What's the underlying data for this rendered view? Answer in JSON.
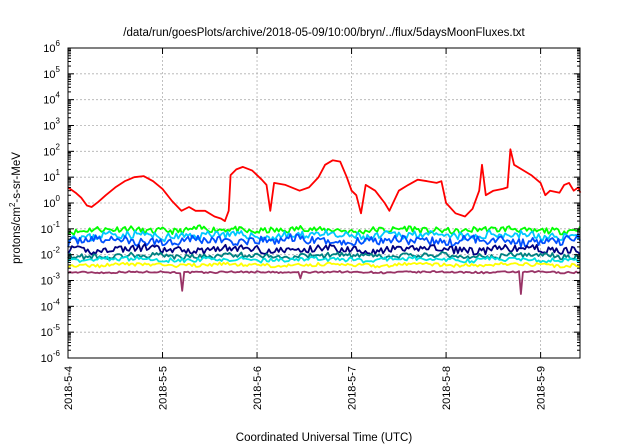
{
  "chart_data": {
    "type": "line",
    "title": "/data/run/goesPlots/archive/2018-05-09/10:00/bryn/../flux/5daysMoonFluxes.txt",
    "xlabel": "Coordinated Universal Time (UTC)",
    "ylabel": "protons/cm²-s-sr-MeV",
    "ylabel_parts": {
      "pre": "protons/cm",
      "sup": "2",
      "post": "-s-sr-MeV"
    },
    "yscale": "log",
    "ylim": [
      1e-06,
      1000000.0
    ],
    "xlim": [
      "2018-05-04 00:00",
      "2018-05-09 10:00"
    ],
    "grid": true,
    "y_ticks": [
      {
        "value": 1e-06,
        "base": "10",
        "exp": "-6"
      },
      {
        "value": 1e-05,
        "base": "10",
        "exp": "-5"
      },
      {
        "value": 0.0001,
        "base": "10",
        "exp": "-4"
      },
      {
        "value": 0.001,
        "base": "10",
        "exp": "-3"
      },
      {
        "value": 0.01,
        "base": "10",
        "exp": "-2"
      },
      {
        "value": 0.1,
        "base": "10",
        "exp": "-1"
      },
      {
        "value": 1,
        "base": "10",
        "exp": "0"
      },
      {
        "value": 10.0,
        "base": "10",
        "exp": "1"
      },
      {
        "value": 100.0,
        "base": "10",
        "exp": "2"
      },
      {
        "value": 1000.0,
        "base": "10",
        "exp": "3"
      },
      {
        "value": 10000.0,
        "base": "10",
        "exp": "4"
      },
      {
        "value": 100000.0,
        "base": "10",
        "exp": "5"
      },
      {
        "value": 1000000.0,
        "base": "10",
        "exp": "6"
      }
    ],
    "x_ticks": [
      {
        "day": 0,
        "label": "2018-5-4"
      },
      {
        "day": 1,
        "label": "2018-5-5"
      },
      {
        "day": 2,
        "label": "2018-5-6"
      },
      {
        "day": 3,
        "label": "2018-5-7"
      },
      {
        "day": 4,
        "label": "2018-5-8"
      },
      {
        "day": 5,
        "label": "2018-5-9"
      }
    ],
    "series": [
      {
        "color": "#ff0000",
        "points": [
          [
            0.0,
            4.0
          ],
          [
            0.08,
            2.5
          ],
          [
            0.14,
            1.6
          ],
          [
            0.2,
            0.8
          ],
          [
            0.25,
            0.7
          ],
          [
            0.32,
            1.1
          ],
          [
            0.4,
            2.0
          ],
          [
            0.5,
            4.0
          ],
          [
            0.6,
            7.0
          ],
          [
            0.7,
            10.0
          ],
          [
            0.8,
            11.0
          ],
          [
            0.9,
            7.0
          ],
          [
            1.0,
            3.5
          ],
          [
            1.1,
            1.2
          ],
          [
            1.2,
            0.5
          ],
          [
            1.28,
            0.7
          ],
          [
            1.35,
            0.5
          ],
          [
            1.45,
            0.5
          ],
          [
            1.55,
            0.3
          ],
          [
            1.62,
            0.25
          ],
          [
            1.66,
            0.2
          ],
          [
            1.7,
            0.5
          ],
          [
            1.72,
            12.0
          ],
          [
            1.78,
            20.0
          ],
          [
            1.85,
            25.0
          ],
          [
            1.95,
            18.0
          ],
          [
            2.05,
            8.0
          ],
          [
            2.1,
            5.0
          ],
          [
            2.14,
            0.5
          ],
          [
            2.18,
            6.0
          ],
          [
            2.3,
            5.0
          ],
          [
            2.45,
            3.0
          ],
          [
            2.55,
            4.0
          ],
          [
            2.65,
            10.0
          ],
          [
            2.72,
            30.0
          ],
          [
            2.8,
            45.0
          ],
          [
            2.88,
            40.0
          ],
          [
            2.95,
            10.0
          ],
          [
            3.0,
            3.0
          ],
          [
            3.05,
            2.0
          ],
          [
            3.1,
            0.4
          ],
          [
            3.15,
            5.0
          ],
          [
            3.25,
            3.0
          ],
          [
            3.35,
            1.0
          ],
          [
            3.4,
            0.5
          ],
          [
            3.5,
            3.0
          ],
          [
            3.6,
            5.0
          ],
          [
            3.7,
            8.0
          ],
          [
            3.8,
            7.0
          ],
          [
            3.9,
            6.0
          ],
          [
            3.95,
            7.0
          ],
          [
            4.0,
            1.0
          ],
          [
            4.1,
            0.4
          ],
          [
            4.2,
            0.3
          ],
          [
            4.28,
            0.6
          ],
          [
            4.35,
            3.0
          ],
          [
            4.38,
            30.0
          ],
          [
            4.42,
            2.0
          ],
          [
            4.5,
            3.0
          ],
          [
            4.6,
            3.5
          ],
          [
            4.65,
            4.0
          ],
          [
            4.68,
            120.0
          ],
          [
            4.72,
            30.0
          ],
          [
            4.8,
            20.0
          ],
          [
            4.9,
            12.0
          ],
          [
            5.0,
            6.0
          ],
          [
            5.05,
            2.0
          ],
          [
            5.1,
            3.0
          ],
          [
            5.2,
            2.5
          ],
          [
            5.25,
            5.0
          ],
          [
            5.3,
            6.0
          ],
          [
            5.35,
            3.0
          ],
          [
            5.4,
            4.0
          ],
          [
            5.42,
            2.5
          ]
        ]
      },
      {
        "color": "#00ff00",
        "base": 0.09,
        "amp": 0.22,
        "seed": 11
      },
      {
        "color": "#00c8ff",
        "base": 0.055,
        "amp": 0.28,
        "seed": 23
      },
      {
        "color": "#0050ff",
        "base": 0.035,
        "amp": 0.3,
        "seed": 37
      },
      {
        "color": "#000080",
        "base": 0.016,
        "amp": 0.25,
        "seed": 41
      },
      {
        "color": "#008080",
        "base": 0.009,
        "amp": 0.18,
        "seed": 53
      },
      {
        "color": "#00e0e0",
        "base": 0.0065,
        "amp": 0.15,
        "seed": 67
      },
      {
        "color": "#ffff00",
        "base": 0.004,
        "amp": 0.12,
        "seed": 79
      },
      {
        "color": "#993366",
        "base": 0.0021,
        "amp": 0.06,
        "seed": 97,
        "spikes": [
          [
            1.21,
            0.0004
          ],
          [
            2.46,
            0.0012
          ],
          [
            4.8,
            0.0003
          ]
        ]
      }
    ]
  }
}
